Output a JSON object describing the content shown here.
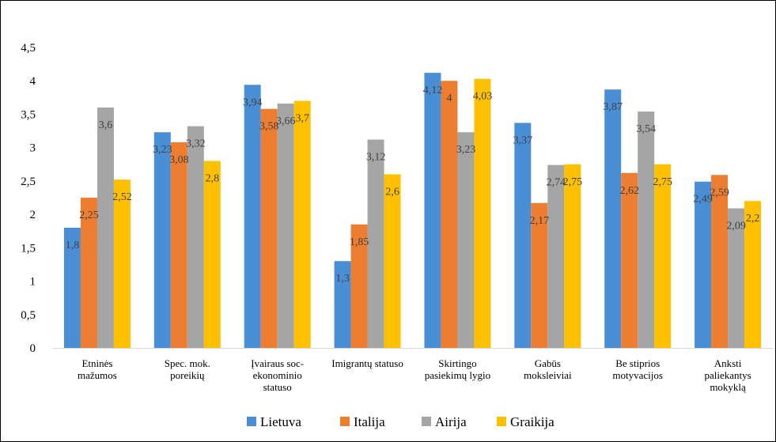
{
  "chart_data": {
    "type": "bar",
    "categories": [
      [
        "Etninės",
        "mažumos"
      ],
      [
        "Spec. mok.",
        "poreikių"
      ],
      [
        "Įvairaus soc-",
        "ekonominio",
        "statuso"
      ],
      [
        "Imigrantų statuso"
      ],
      [
        "Skirtingo",
        "pasiekimų lygio"
      ],
      [
        "Gabūs",
        "moksleiviai"
      ],
      [
        "Be stiprios",
        "motyvacijos"
      ],
      [
        "Anksti",
        "paliekantys",
        "mokyklą"
      ]
    ],
    "series": [
      {
        "name": "Lietuva",
        "color": "#4A8FD6",
        "values": [
          1.8,
          3.23,
          3.94,
          1.3,
          4.12,
          3.37,
          3.87,
          2.49
        ],
        "labels": [
          "1,8",
          "3,23",
          "3,94",
          "1,3",
          "4,12",
          "3,37",
          "3,87",
          "2,49"
        ]
      },
      {
        "name": "Italija",
        "color": "#ED7D31",
        "values": [
          2.25,
          3.08,
          3.58,
          1.85,
          4,
          2.17,
          2.62,
          2.59
        ],
        "labels": [
          "2,25",
          "3,08",
          "3,58",
          "1,85",
          "4",
          "2,17",
          "2,62",
          "2,59"
        ]
      },
      {
        "name": "Airija",
        "color": "#A5A5A5",
        "values": [
          3.6,
          3.32,
          3.66,
          3.12,
          3.23,
          2.74,
          3.54,
          2.09
        ],
        "labels": [
          "3,6",
          "3,32",
          "3,66",
          "3,12",
          "3,23",
          "2,74",
          "3,54",
          "2,09"
        ]
      },
      {
        "name": "Graikija",
        "color": "#FFC000",
        "values": [
          2.52,
          2.8,
          3.7,
          2.6,
          4.03,
          2.75,
          2.75,
          2.2
        ],
        "labels": [
          "2,52",
          "2,8",
          "3,7",
          "2,6",
          "4,03",
          "2,75",
          "2,75",
          "2,2"
        ]
      }
    ],
    "yticks": [
      "0",
      "0,5",
      "1",
      "1,5",
      "2",
      "2,5",
      "3",
      "3,5",
      "4",
      "4,5"
    ],
    "ylim": [
      0,
      4.5
    ],
    "grid": false,
    "legend_position": "bottom",
    "title": "",
    "xlabel": "",
    "ylabel": ""
  }
}
